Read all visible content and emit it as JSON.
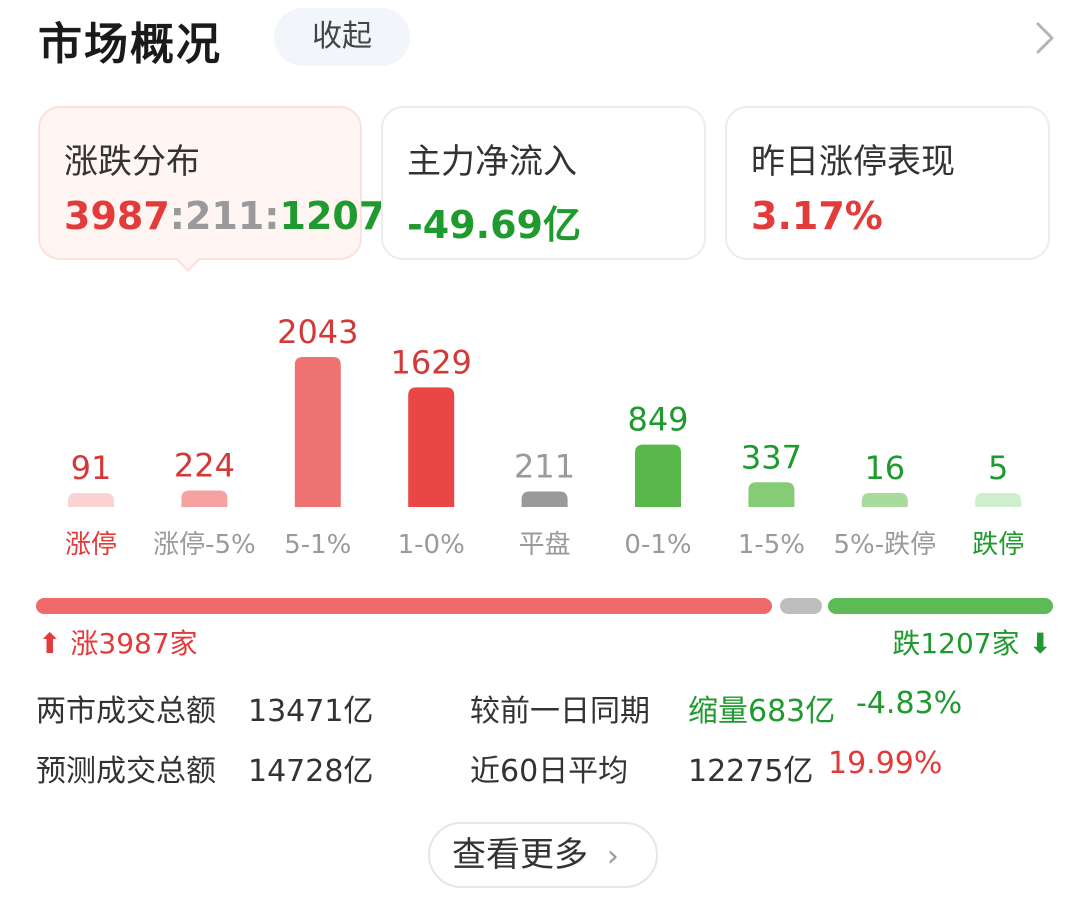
{
  "header": {
    "title": "市场概况",
    "collapse_label": "收起"
  },
  "cards": [
    {
      "label": "涨跌分布",
      "up": "3987",
      "sep1": ":",
      "flat": "211",
      "sep2": ":",
      "down": "1207"
    },
    {
      "label": "主力净流入",
      "value": "-49.69亿"
    },
    {
      "label": "昨日涨停表现",
      "value": "3.17%"
    }
  ],
  "chart_data": {
    "type": "bar",
    "categories": [
      "涨停",
      "涨停-5%",
      "5-1%",
      "1-0%",
      "平盘",
      "0-1%",
      "1-5%",
      "5%-跌停",
      "跌停"
    ],
    "values": [
      91,
      224,
      2043,
      1629,
      211,
      849,
      337,
      16,
      5
    ],
    "colors": [
      "#fbd2d2",
      "#f5a2a2",
      "#ee7272",
      "#e94646",
      "#9a9a9a",
      "#58b84a",
      "#86cc76",
      "#a9dc9c",
      "#cfeecb"
    ],
    "value_colors": [
      "#d23a3a",
      "#d23a3a",
      "#d23a3a",
      "#d23a3a",
      "#9a9a9a",
      "#1f9a2e",
      "#1f9a2e",
      "#1f9a2e",
      "#1f9a2e"
    ],
    "label_colors": [
      "#e33a3a",
      "#9a9a9a",
      "#9a9a9a",
      "#9a9a9a",
      "#9a9a9a",
      "#9a9a9a",
      "#9a9a9a",
      "#9a9a9a",
      "#1f9a2e"
    ]
  },
  "ratio_bar": {
    "up_label": "涨3987家",
    "down_label": "跌1207家",
    "up_color": "#ef6b6b",
    "flat_color": "#bdbdbd",
    "down_color": "#5dbb55"
  },
  "stats": {
    "turnover_label": "两市成交总额",
    "turnover_value": "13471亿",
    "compare_label": "较前一日同期",
    "compare_value": "缩量683亿",
    "compare_pct": "-4.83%",
    "forecast_label": "预测成交总额",
    "forecast_value": "14728亿",
    "avg_label": "近60日平均",
    "avg_value": "12275亿",
    "avg_pct": "19.99%"
  },
  "more_label": "查看更多"
}
